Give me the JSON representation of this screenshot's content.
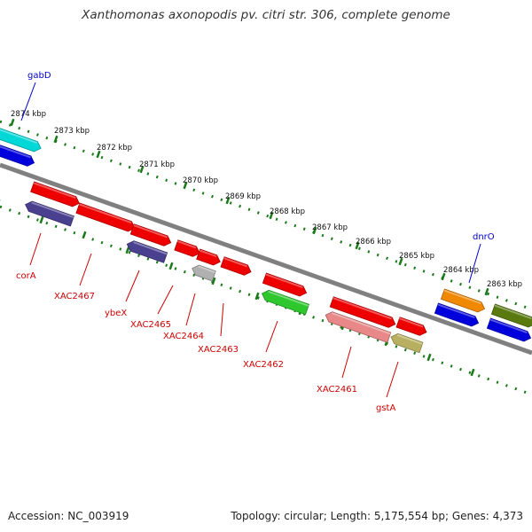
{
  "title": "Xanthomonas axonopodis pv. citri str. 306, complete genome",
  "footer": {
    "accession": "Accession: NC_003919",
    "topology": "Topology: circular;",
    "length": "Length: 5,175,554 bp;",
    "genes": "Genes: 4,373"
  },
  "colors": {
    "backbone": "#808080",
    "ruler": "#1a7a1a",
    "label_forward": "#0000cc",
    "label_reverse": "#cc0000"
  },
  "ticks": [
    {
      "label": "2874 kbp"
    },
    {
      "label": "2873 kbp"
    },
    {
      "label": "2872 kbp"
    },
    {
      "label": "2871 kbp"
    },
    {
      "label": "2870 kbp"
    },
    {
      "label": "2869 kbp"
    },
    {
      "label": "2868 kbp"
    },
    {
      "label": "2867 kbp"
    },
    {
      "label": "2866 kbp"
    },
    {
      "label": "2865 kbp"
    },
    {
      "label": "2864 kbp"
    },
    {
      "label": "2863 kbp"
    }
  ],
  "features": [
    {
      "color": "#00d8d8"
    },
    {
      "color": "#0000dd"
    },
    {
      "color": "#ee0000"
    },
    {
      "color": "#4a4090"
    },
    {
      "color": "#ee0000"
    },
    {
      "color": "#ee0000"
    },
    {
      "color": "#4a4090"
    },
    {
      "color": "#ee0000"
    },
    {
      "color": "#ee0000"
    },
    {
      "color": "#b0b0b0"
    },
    {
      "color": "#ee0000"
    },
    {
      "color": "#ee0000"
    },
    {
      "color": "#2ec82e"
    },
    {
      "color": "#ee0000"
    },
    {
      "color": "#e88888"
    },
    {
      "color": "#ee0000"
    },
    {
      "color": "#b8b060"
    },
    {
      "color": "#f08800"
    },
    {
      "color": "#0000dd"
    },
    {
      "color": "#5a7a10"
    },
    {
      "color": "#0000dd"
    }
  ],
  "gene_labels": [
    {
      "text": "gabD"
    },
    {
      "text": "dnrO"
    },
    {
      "text": "corA"
    },
    {
      "text": "XAC2467"
    },
    {
      "text": "ybeX"
    },
    {
      "text": "XAC2465"
    },
    {
      "text": "XAC2464"
    },
    {
      "text": "XAC2463"
    },
    {
      "text": "XAC2462"
    },
    {
      "text": "XAC2461"
    },
    {
      "text": "gstA"
    }
  ]
}
